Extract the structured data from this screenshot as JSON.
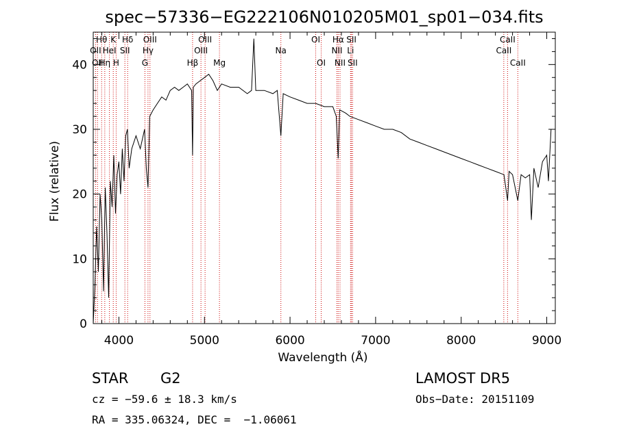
{
  "chart_data": {
    "type": "line",
    "title": "spec−57336−EG222106N010205M01_sp01−034.fits",
    "xlabel": "Wavelength (Å)",
    "ylabel": "Flux (relative)",
    "xlim": [
      3700,
      9100
    ],
    "ylim": [
      0,
      45
    ],
    "xticks": [
      4000,
      5000,
      6000,
      7000,
      8000,
      9000
    ],
    "yticks": [
      0,
      10,
      20,
      30,
      40
    ],
    "grid": false,
    "colors": {
      "line": "#000000",
      "markers": "#cc0000"
    },
    "series": [
      {
        "x": [
          3700,
          3720,
          3740,
          3760,
          3780,
          3800,
          3820,
          3840,
          3860,
          3880,
          3900,
          3920,
          3940,
          3960,
          3980,
          4000,
          4020,
          4040,
          4060,
          4080,
          4100,
          4120,
          4150,
          4200,
          4250,
          4300,
          4320,
          4340,
          4360,
          4400,
          4450,
          4500,
          4550,
          4600,
          4650,
          4700,
          4750,
          4800,
          4850,
          4861,
          4870,
          4900,
          4950,
          5000,
          5050,
          5100,
          5150,
          5200,
          5300,
          5400,
          5500,
          5550,
          5577,
          5600,
          5700,
          5800,
          5850,
          5893,
          5920,
          6000,
          6100,
          6200,
          6300,
          6400,
          6500,
          6540,
          6563,
          6580,
          6650,
          6700,
          6800,
          6900,
          7000,
          7100,
          7200,
          7300,
          7400,
          7500,
          7600,
          7700,
          7800,
          7900,
          8000,
          8100,
          8200,
          8300,
          8400,
          8500,
          8542,
          8560,
          8600,
          8662,
          8700,
          8750,
          8800,
          8820,
          8850,
          8900,
          8950,
          9000,
          9020,
          9050
        ],
        "y": [
          0,
          6,
          15,
          8,
          20,
          16,
          5,
          21,
          14,
          4,
          22,
          18,
          26,
          17,
          23,
          25,
          20,
          27,
          22,
          29,
          30,
          24,
          27,
          29,
          27,
          30,
          24,
          21,
          32,
          33,
          34,
          35,
          34.5,
          36,
          36.5,
          36,
          36.5,
          37,
          36,
          26,
          36.5,
          37,
          37.5,
          38,
          38.5,
          37.5,
          36,
          37,
          36.5,
          36.5,
          35.5,
          36,
          44,
          36,
          36,
          35.5,
          36,
          29,
          35.5,
          35,
          34.5,
          34,
          34,
          33.5,
          33.5,
          32,
          25.5,
          33,
          32.5,
          32,
          31.5,
          31,
          30.5,
          30,
          30,
          29.5,
          28.5,
          28,
          27.5,
          27,
          26.5,
          26,
          25.5,
          25,
          24.5,
          24,
          23.5,
          23,
          19,
          23.5,
          23,
          19,
          23,
          22.5,
          23,
          16,
          24,
          21,
          25,
          26,
          22,
          30
        ]
      }
    ],
    "lines": [
      {
        "x": 3727,
        "label": "OII",
        "row": 2
      },
      {
        "x": 3750,
        "label": "OII",
        "row": 3
      },
      {
        "x": 3798,
        "label": "Hθ",
        "row": 1
      },
      {
        "x": 3835,
        "label": "Hη",
        "row": 3
      },
      {
        "x": 3889,
        "label": "HeI",
        "row": 2
      },
      {
        "x": 3934,
        "label": "K",
        "row": 1
      },
      {
        "x": 3968,
        "label": "H",
        "row": 3
      },
      {
        "x": 4070,
        "label": "SII",
        "row": 2
      },
      {
        "x": 4102,
        "label": "Hδ",
        "row": 1
      },
      {
        "x": 4304,
        "label": "G",
        "row": 3
      },
      {
        "x": 4340,
        "label": "Hγ",
        "row": 2
      },
      {
        "x": 4363,
        "label": "OIII",
        "row": 1
      },
      {
        "x": 4861,
        "label": "Hβ",
        "row": 3
      },
      {
        "x": 4959,
        "label": "OIII",
        "row": 2
      },
      {
        "x": 5007,
        "label": "OIII",
        "row": 1
      },
      {
        "x": 5175,
        "label": "Mg",
        "row": 3
      },
      {
        "x": 5893,
        "label": "Na",
        "row": 2
      },
      {
        "x": 6300,
        "label": "OI",
        "row": 1
      },
      {
        "x": 6364,
        "label": "OI",
        "row": 3
      },
      {
        "x": 6548,
        "label": "NII",
        "row": 2
      },
      {
        "x": 6563,
        "label": "Hα",
        "row": 1
      },
      {
        "x": 6584,
        "label": "NII",
        "row": 3
      },
      {
        "x": 6707,
        "label": "Li",
        "row": 2
      },
      {
        "x": 6717,
        "label": "SII",
        "row": 1
      },
      {
        "x": 6731,
        "label": "SII",
        "row": 3
      },
      {
        "x": 8498,
        "label": "CaII",
        "row": 2
      },
      {
        "x": 8542,
        "label": "CaII",
        "row": 1
      },
      {
        "x": 8662,
        "label": "CaII",
        "row": 3
      }
    ]
  },
  "info": {
    "object_class": "STAR",
    "subclass": "G2",
    "survey": "LAMOST DR5",
    "cz": "cz = −59.6 ± 18.3 km/s",
    "obs_date": "Obs−Date: 20151109",
    "coords": "RA = 335.06324, DEC =  −1.06061"
  }
}
